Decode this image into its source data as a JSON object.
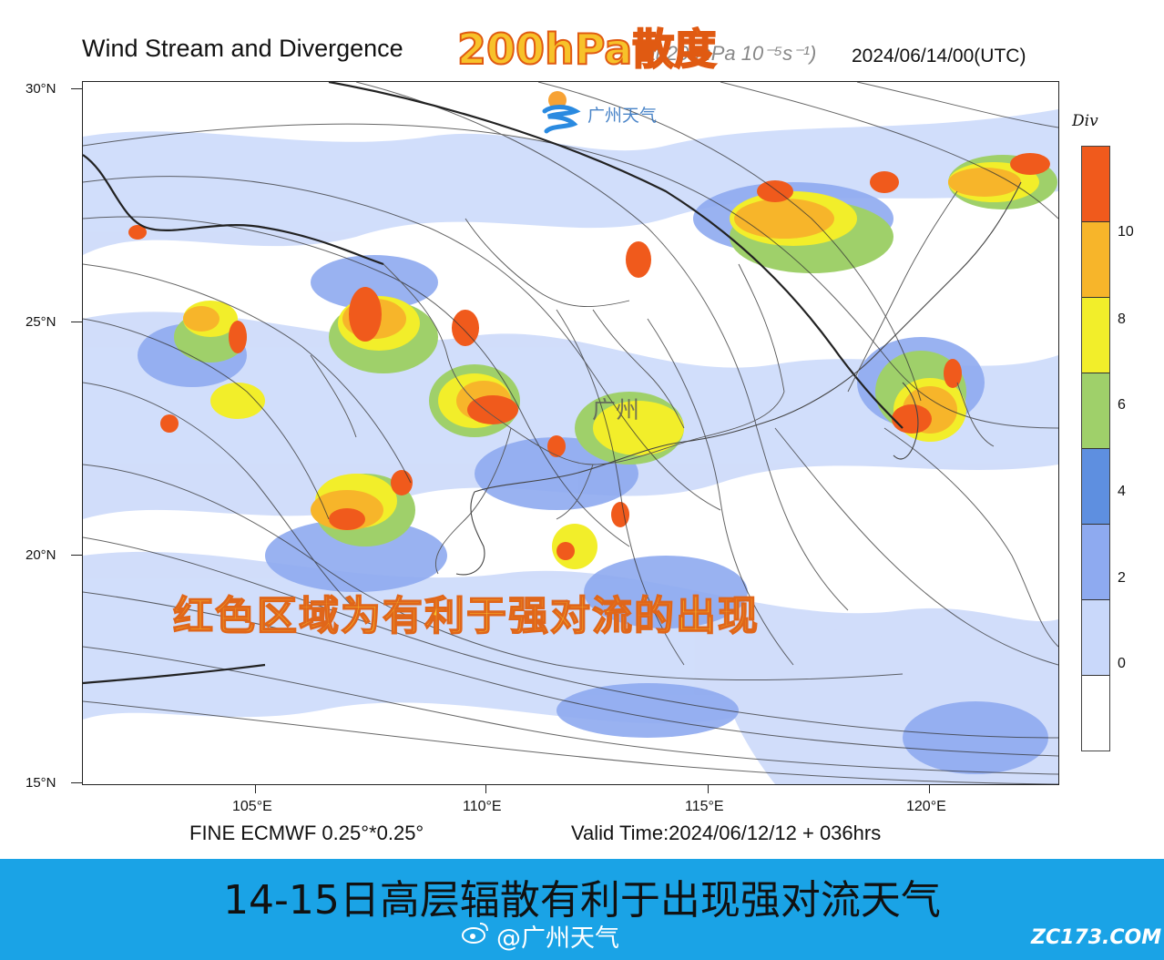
{
  "header": {
    "title": "Wind Stream and Divergence",
    "title_suffix": "(at 200hPa 10⁻⁵s⁻¹)",
    "overlay_title": "200hPa散度",
    "valid_date": "2024/06/14/00(UTC)"
  },
  "map": {
    "lat_labels": [
      "30°N",
      "25°N",
      "20°N",
      "15°N"
    ],
    "lon_labels": [
      "105°E",
      "110°E",
      "115°E",
      "120°E"
    ],
    "city_label": "广州",
    "logo_text": "广州天气",
    "caption": "红色区域为有利于强对流的出现"
  },
  "legend": {
    "title": "Div",
    "labels": [
      "10",
      "8",
      "6",
      "4",
      "2",
      "0"
    ],
    "colors": [
      "#f05a1c",
      "#f7b52a",
      "#f2ee2a",
      "#9fd06a",
      "#5e8fe0",
      "#8eaaf0",
      "#c9d8fa",
      "#ffffff"
    ]
  },
  "footer": {
    "model": "FINE ECMWF 0.25°*0.25°",
    "valid_time": "Valid Time:2024/06/12/12 + 036hrs"
  },
  "banner": {
    "text": "14-15日高层辐散有利于出现强对流天气",
    "handle": "@广州天气",
    "watermark": "ZC173.COM"
  }
}
